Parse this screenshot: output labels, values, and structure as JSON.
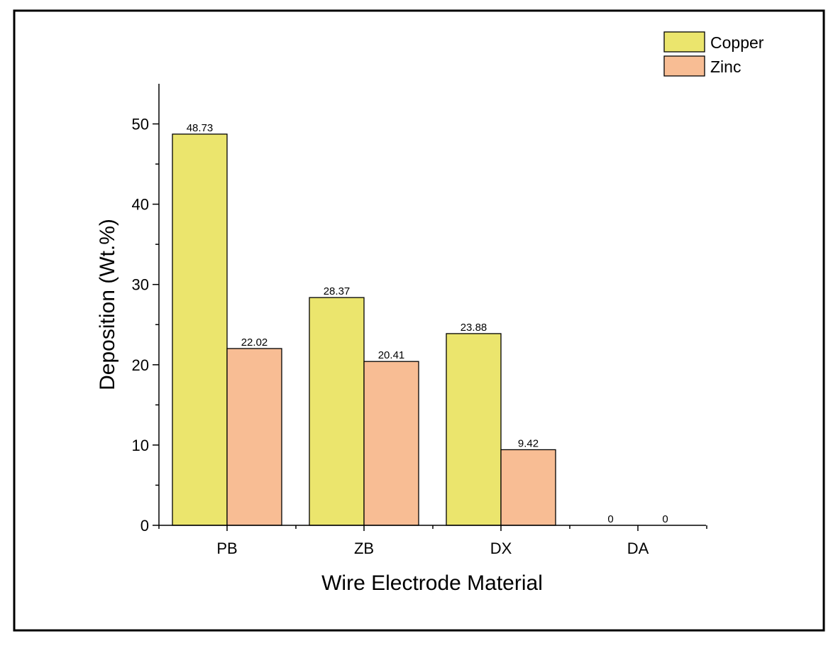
{
  "chart_data": {
    "type": "bar",
    "title": "",
    "xlabel": "Wire Electrode Material",
    "ylabel": "Deposition  (Wt.%)",
    "categories": [
      "PB",
      "ZB",
      "DX",
      "DA"
    ],
    "series": [
      {
        "name": "Copper",
        "color": "#ebe56d",
        "values": [
          48.73,
          28.37,
          23.88,
          0
        ],
        "labels": [
          "48.73",
          "28.37",
          "23.88",
          "0"
        ]
      },
      {
        "name": "Zinc",
        "color": "#f8bd94",
        "values": [
          22.02,
          20.41,
          9.42,
          0
        ],
        "labels": [
          "22.02",
          "20.41",
          "9.42",
          "0"
        ]
      }
    ],
    "ylim": [
      0,
      55
    ],
    "yticks": [
      0,
      10,
      20,
      30,
      40,
      50
    ],
    "ytick_labels": [
      "0",
      "10",
      "20",
      "30",
      "40",
      "50"
    ],
    "grid": false,
    "legend_position": "top-right"
  }
}
